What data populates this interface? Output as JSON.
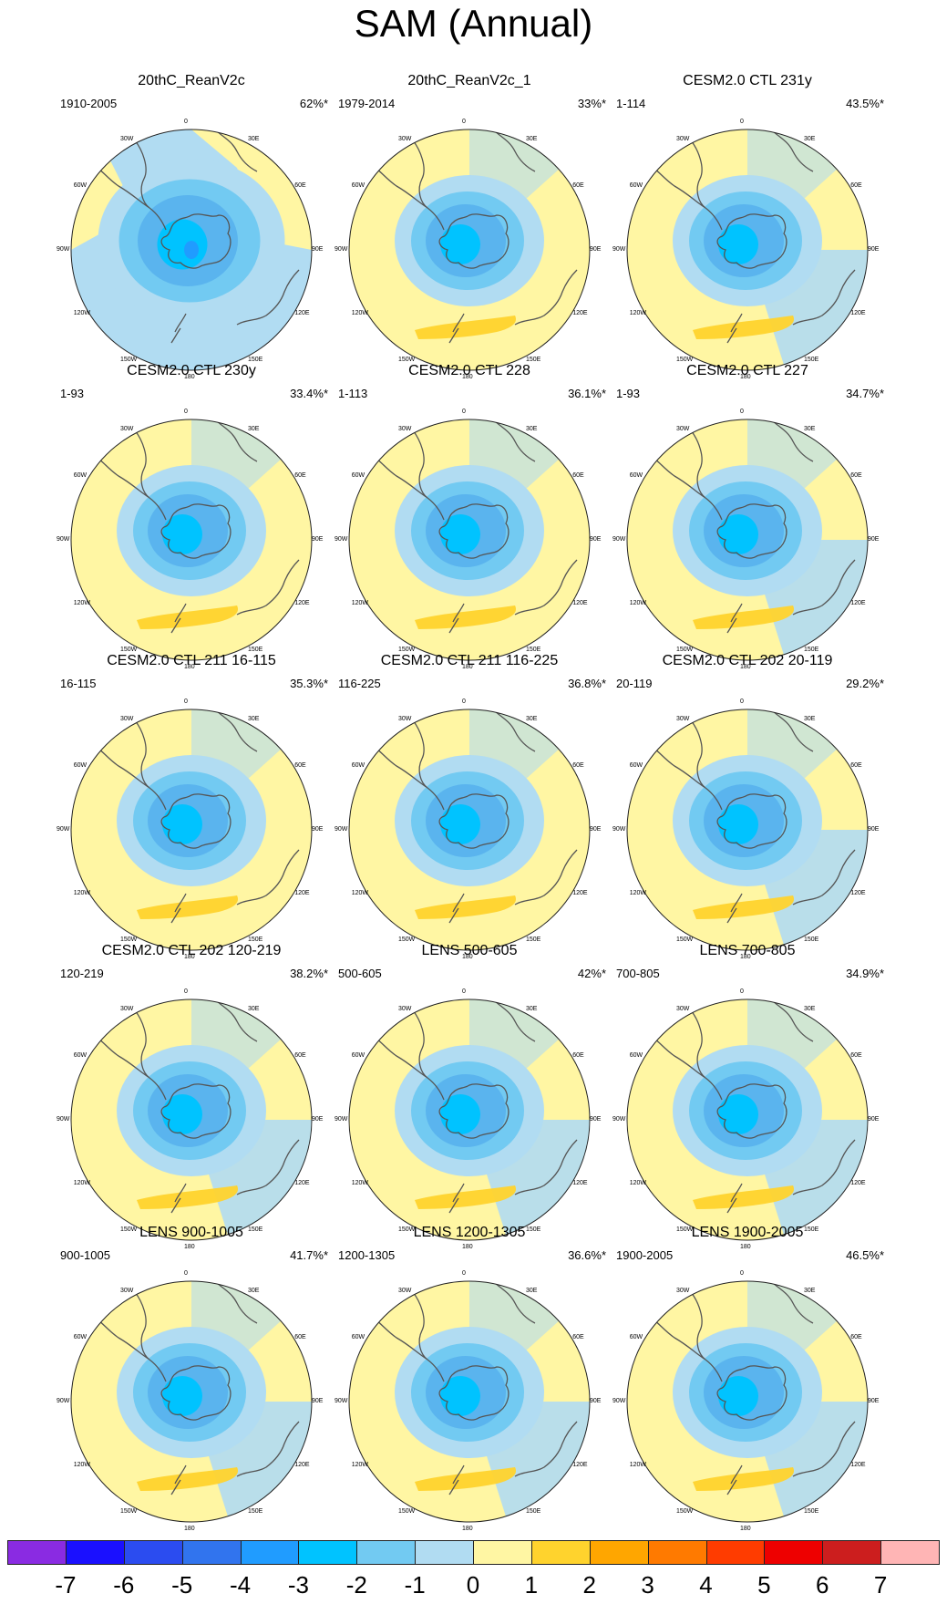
{
  "title": "SAM (Annual)",
  "axis_labels": {
    "top": "0",
    "bottom": "180",
    "right": [
      "30E",
      "60E",
      "90E",
      "120E",
      "150E"
    ],
    "left": [
      "30W",
      "60W",
      "90W",
      "120W",
      "150W"
    ]
  },
  "panels": [
    {
      "name": "20thC_ReanV2c",
      "period": "1910-2005",
      "pct": "62%*"
    },
    {
      "name": "20thC_ReanV2c_1",
      "period": "1979-2014",
      "pct": "33%*"
    },
    {
      "name": "CESM2.0 CTL 231y",
      "period": "1-114",
      "pct": "43.5%*"
    },
    {
      "name": "CESM2.0 CTL 230y",
      "period": "1-93",
      "pct": "33.4%*"
    },
    {
      "name": "CESM2.0 CTL 228",
      "period": "1-113",
      "pct": "36.1%*"
    },
    {
      "name": "CESM2.0 CTL 227",
      "period": "1-93",
      "pct": "34.7%*"
    },
    {
      "name": "CESM2.0 CTL 211 16-115",
      "period": "16-115",
      "pct": "35.3%*"
    },
    {
      "name": "CESM2.0 CTL 211 116-225",
      "period": "116-225",
      "pct": "36.8%*"
    },
    {
      "name": "CESM2.0 CTL 202 20-119",
      "period": "20-119",
      "pct": "29.2%*"
    },
    {
      "name": "CESM2.0 CTL 202 120-219",
      "period": "120-219",
      "pct": "38.2%*"
    },
    {
      "name": "LENS 500-605",
      "period": "500-605",
      "pct": "42%*"
    },
    {
      "name": "LENS 700-805",
      "period": "700-805",
      "pct": "34.9%*"
    },
    {
      "name": "LENS 900-1005",
      "period": "900-1005",
      "pct": "41.7%*"
    },
    {
      "name": "LENS 1200-1305",
      "period": "1200-1305",
      "pct": "36.6%*"
    },
    {
      "name": "LENS 1900-2005",
      "period": "1900-2005",
      "pct": "46.5%*"
    }
  ],
  "colorbar": {
    "colors": [
      "#8a2be2",
      "#1a10ff",
      "#2b4cf0",
      "#3174ee",
      "#209cff",
      "#00c3ff",
      "#72caf2",
      "#b1dcf2",
      "#fff6a3",
      "#ffd32d",
      "#ffa600",
      "#ff7a00",
      "#ff3c00",
      "#ee0000",
      "#cc1e1e",
      "#ffb5b5"
    ],
    "ticks": [
      "-7",
      "-6",
      "-5",
      "-4",
      "-3",
      "-2",
      "-1",
      "0",
      "1",
      "2",
      "3",
      "4",
      "5",
      "6",
      "7"
    ]
  }
}
